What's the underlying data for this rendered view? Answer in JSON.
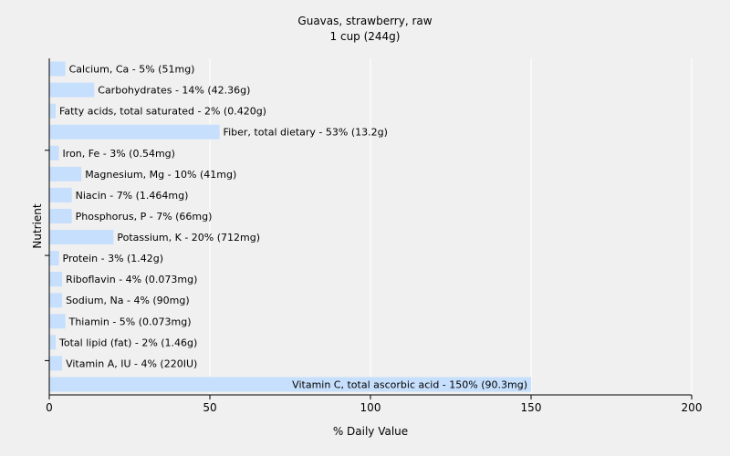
{
  "chart_data": {
    "type": "bar",
    "orientation": "horizontal",
    "title": "Guavas, strawberry, raw",
    "subtitle": "1 cup (244g)",
    "xlabel": "% Daily Value",
    "ylabel": "Nutrient",
    "xlim": [
      0,
      200
    ],
    "xticks": [
      0,
      50,
      100,
      150,
      200
    ],
    "grid": true,
    "bar_color": "#c6dffc",
    "grid_color": "#ffffff",
    "categories": [
      "Calcium, Ca",
      "Carbohydrates",
      "Fatty acids, total saturated",
      "Fiber, total dietary",
      "Iron, Fe",
      "Magnesium, Mg",
      "Niacin",
      "Phosphorus, P",
      "Potassium, K",
      "Protein",
      "Riboflavin",
      "Sodium, Na",
      "Thiamin",
      "Total lipid (fat)",
      "Vitamin A, IU",
      "Vitamin C, total ascorbic acid"
    ],
    "values": [
      5,
      14,
      2,
      53,
      3,
      10,
      7,
      7,
      20,
      3,
      4,
      4,
      5,
      2,
      4,
      150
    ],
    "bar_labels": [
      "Calcium, Ca - 5% (51mg)",
      "Carbohydrates - 14% (42.36g)",
      "Fatty acids, total saturated - 2% (0.420g)",
      "Fiber, total dietary - 53% (13.2g)",
      "Iron, Fe - 3% (0.54mg)",
      "Magnesium, Mg - 10% (41mg)",
      "Niacin - 7% (1.464mg)",
      "Phosphorus, P - 7% (66mg)",
      "Potassium, K - 20% (712mg)",
      "Protein - 3% (1.42g)",
      "Riboflavin - 4% (0.073mg)",
      "Sodium, Na - 4% (90mg)",
      "Thiamin - 5% (0.073mg)",
      "Total lipid (fat) - 2% (1.46g)",
      "Vitamin A, IU - 4% (220IU)",
      "Vitamin C, total ascorbic acid - 150% (90.3mg)"
    ]
  }
}
